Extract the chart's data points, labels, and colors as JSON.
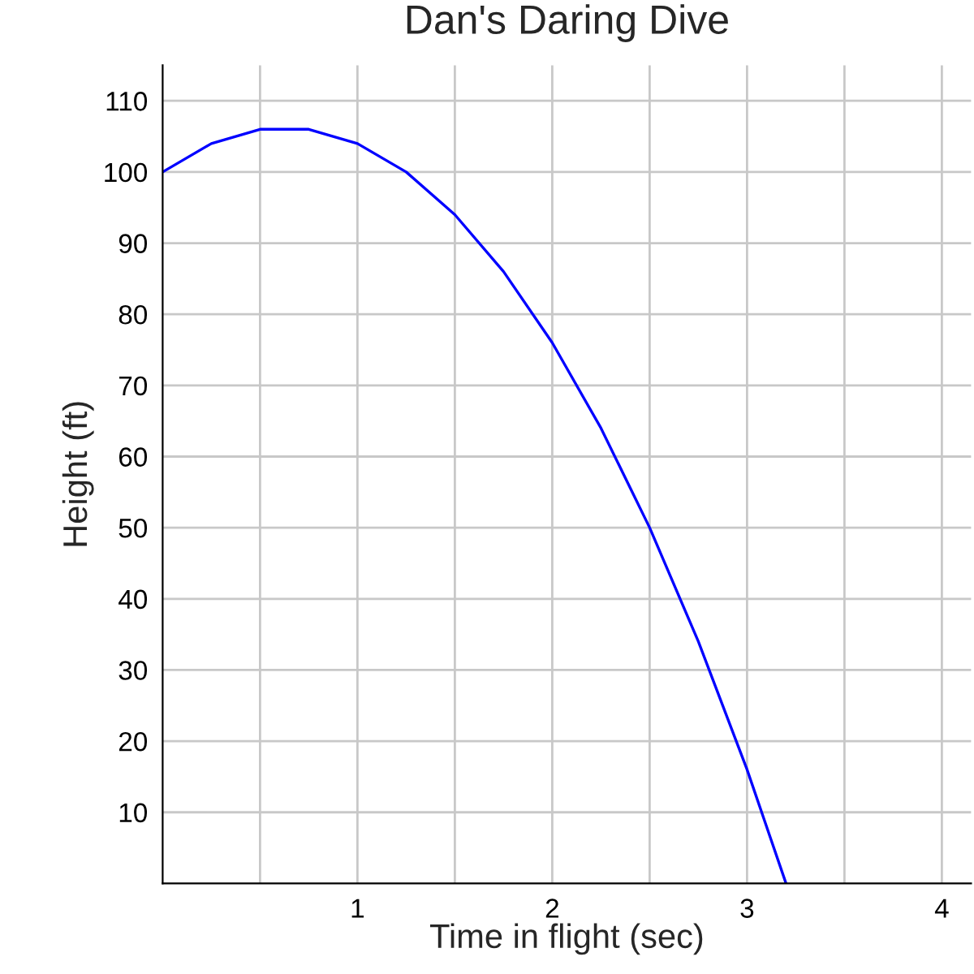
{
  "chart_data": {
    "type": "line",
    "title": "Dan's Daring Dive",
    "xlabel": "Time in flight (sec)",
    "ylabel": "Height (ft)",
    "series": [
      {
        "color": "#0000ff",
        "x": [
          0,
          0.25,
          0.5,
          0.625,
          0.75,
          1,
          1.25,
          1.5,
          1.75,
          2,
          2.25,
          2.5,
          2.75,
          3,
          3.2
        ],
        "values": [
          100,
          104,
          106,
          106,
          106,
          104,
          100,
          94,
          86,
          76,
          64,
          50,
          34,
          16,
          0
        ]
      }
    ],
    "xlim": [
      0,
      4.15
    ],
    "ylim": [
      0,
      115
    ],
    "xticks": [
      {
        "value": 0.5,
        "label": null
      },
      1,
      {
        "value": 1.5,
        "label": null
      },
      2,
      {
        "value": 2.5,
        "label": null
      },
      3,
      {
        "value": 3.5,
        "label": null
      },
      4
    ],
    "yticks": [
      10,
      20,
      30,
      40,
      50,
      60,
      70,
      80,
      90,
      100,
      110
    ],
    "grid": true,
    "marker": "none",
    "line_style": "solid",
    "legend": false
  }
}
